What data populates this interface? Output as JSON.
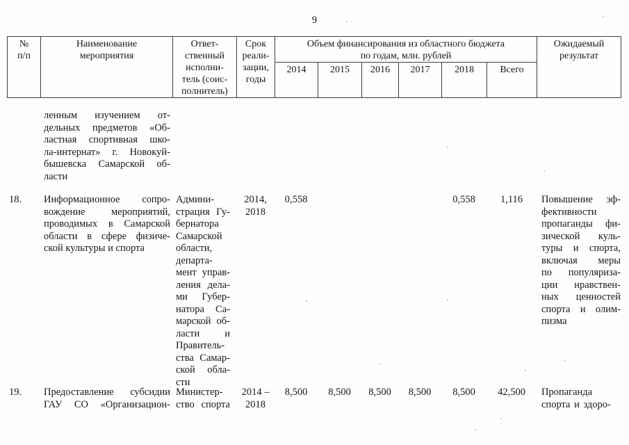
{
  "page_number": "9",
  "table": {
    "header": {
      "num": "№\nп/п",
      "name": "Наименование\nмероприятия",
      "executor": "Ответ-\nственный\nисполни-\nтель (соис-\nполнитель)",
      "term": "Срок\nреали-\nзации,\nгоды",
      "financing": "Объем финансирования из областного бюджета\nпо годам, млн. рублей",
      "years": [
        "2014",
        "2015",
        "2016",
        "2017",
        "2018",
        "Всего"
      ],
      "result": "Ожидаемый\nрезультат"
    },
    "rows": [
      {
        "num": "",
        "name_lines": [
          "ленным изучением от-",
          "дельных предметов «Об-",
          "ластная спортивная шко-",
          "ла-интернат» г. Новокуй-",
          "бышевска Самарской об-",
          "ласти"
        ],
        "executor_lines": [],
        "term_lines": [],
        "values": [
          "",
          "",
          "",
          "",
          "",
          ""
        ],
        "result_lines": []
      },
      {
        "num": "18.",
        "name_lines": [
          "Информационное сопро-",
          "вождение мероприятий,",
          "проводимых в Самарской",
          "области в сфере физиче-",
          "ской культуры и спорта"
        ],
        "executor_lines": [
          "Админи-",
          "страция Гу-",
          "бернатора",
          "Самарской",
          "области,",
          "департа-",
          "мент управ-",
          "ления дела-",
          "ми Губер-",
          "натора Са-",
          "марской об-",
          "ласти и",
          "Правитель-",
          "ства Самар-",
          "ской обла-",
          "сти"
        ],
        "term_lines": [
          "2014,",
          "2018"
        ],
        "values": [
          "0,558",
          "",
          "",
          "",
          "0,558",
          "1,116"
        ],
        "result_lines": [
          "Повышение эф-",
          "фективности",
          "пропаганды фи-",
          "зической куль-",
          "туры и спорта,",
          "включая меры",
          "по популяриза-",
          "ции нравствен-",
          "ных ценностей",
          "спорта и олим-",
          "пизма"
        ]
      },
      {
        "num": "19.",
        "name_lines": [
          "Предоставление субсидии",
          "ГАУ СО «Организацион-"
        ],
        "executor_lines": [
          "Министер-",
          "ство спорта"
        ],
        "term_lines": [
          "2014 –",
          "2018"
        ],
        "values": [
          "8,500",
          "8,500",
          "8,500",
          "8,500",
          "8,500",
          "42,500"
        ],
        "result_lines": [
          "Пропаганда",
          "спорта и здоро-"
        ]
      }
    ]
  }
}
